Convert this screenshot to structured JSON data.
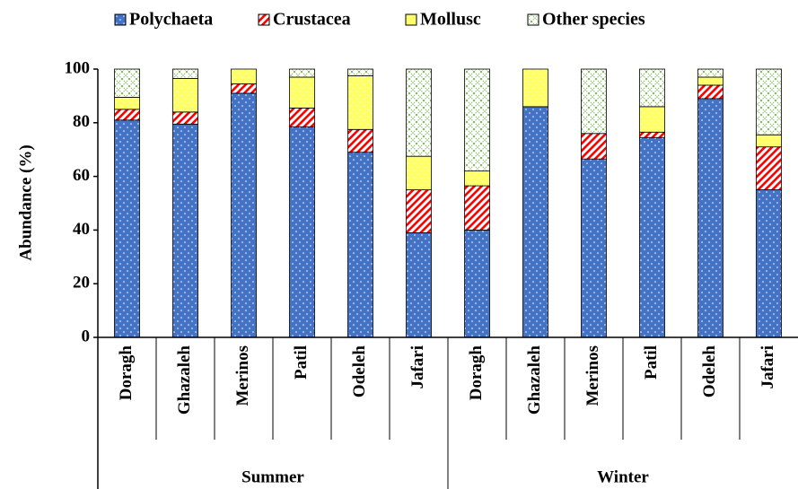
{
  "chart_data": {
    "type": "stacked_bar",
    "ylabel": "Abundance (%)",
    "categories": [
      "Doragh",
      "Ghazaleh",
      "Merinos",
      "Patil",
      "Odeleh",
      "Jafari",
      "Doragh",
      "Ghazaleh",
      "Merinos",
      "Patil",
      "Odeleh",
      "Jafari"
    ],
    "groups": [
      "Summer",
      "Winter"
    ],
    "series": [
      {
        "name": "Polychaeta",
        "color": "#4472c4",
        "pattern": "dots",
        "values": [
          81,
          79.5,
          91,
          78.5,
          69,
          39,
          40,
          86,
          66.5,
          74.5,
          89,
          55
        ]
      },
      {
        "name": "Crustacea",
        "color": "#ff0000",
        "pattern": "stripes",
        "values": [
          4,
          4.5,
          3.5,
          7,
          8.5,
          16,
          16.5,
          0,
          9.5,
          2,
          5,
          16
        ]
      },
      {
        "name": "Mollusc",
        "color": "#ffff66",
        "pattern": "dots",
        "values": [
          4.5,
          12.5,
          5.5,
          11.5,
          20,
          12.5,
          5.5,
          14,
          0,
          9.5,
          3,
          4.5
        ]
      },
      {
        "name": "Other species",
        "color": "#70ad47",
        "pattern": "crosshatch",
        "values": [
          10.5,
          3.5,
          0,
          3,
          2.5,
          32.5,
          38,
          0,
          24,
          14,
          3,
          24.5
        ]
      }
    ],
    "ylim": [
      0,
      100
    ],
    "yticks": [
      0,
      20,
      40,
      60,
      80,
      100
    ],
    "legend": "top"
  }
}
